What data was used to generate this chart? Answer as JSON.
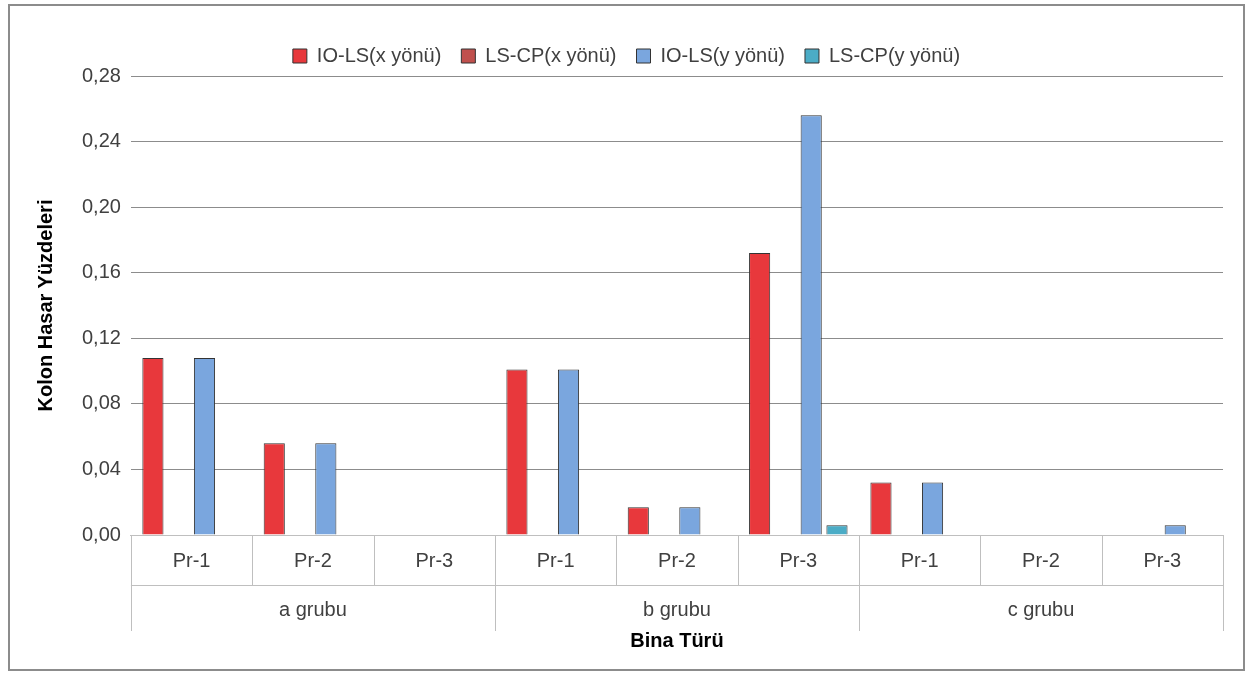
{
  "chart_data": {
    "type": "bar",
    "xlabel": "Bina Türü",
    "ylabel": "Kolon Hasar Yüzdeleri",
    "categories": [
      "Pr-1",
      "Pr-2",
      "Pr-3",
      "Pr-1",
      "Pr-2",
      "Pr-3",
      "Pr-1",
      "Pr-2",
      "Pr-3"
    ],
    "annotations": [
      "a grubu",
      "b grubu",
      "c grubu"
    ],
    "series": [
      {
        "name": "IO-LS(x yönü)",
        "color": "#e8383c",
        "values": [
          0.108,
          0.056,
          0,
          0.101,
          0.017,
          0.172,
          0.032,
          0,
          0
        ]
      },
      {
        "name": "LS-CP(x yönü)",
        "color": "#c0504d",
        "values": [
          0,
          0,
          0,
          0,
          0,
          0,
          0,
          0,
          0
        ]
      },
      {
        "name": "IO-LS(y yönü)",
        "color": "#7aa6de",
        "values": [
          0.108,
          0.056,
          0,
          0.101,
          0.017,
          0.256,
          0.032,
          0,
          0.006
        ]
      },
      {
        "name": "LS-CP(y yönü)",
        "color": "#4bacc6",
        "values": [
          0,
          0,
          0,
          0,
          0,
          0.006,
          0,
          0,
          0
        ]
      }
    ],
    "ylim": [
      0,
      0.28
    ],
    "yticks": [
      {
        "value": 0,
        "label": "0,00"
      },
      {
        "value": 0.04,
        "label": "0,04"
      },
      {
        "value": 0.08,
        "label": "0,08"
      },
      {
        "value": 0.12,
        "label": "0,12"
      },
      {
        "value": 0.16,
        "label": "0,16"
      },
      {
        "value": 0.2,
        "label": "0,20"
      },
      {
        "value": 0.24,
        "label": "0,24"
      },
      {
        "value": 0.28,
        "label": "0,28"
      }
    ],
    "grid": "y",
    "legend": "top"
  }
}
